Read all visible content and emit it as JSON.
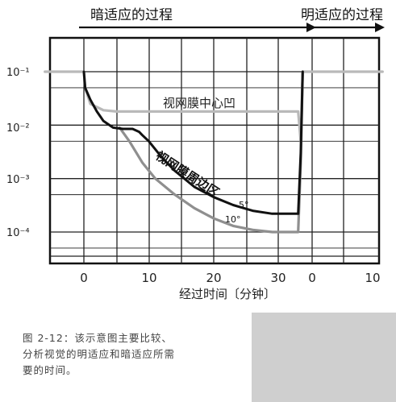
{
  "chart_data": {
    "type": "line",
    "top_labels": {
      "dark": "暗适应的过程",
      "light": "明适应的过程"
    },
    "xlabel": "经过时间〔分钟〕",
    "x_ticks_dark": [
      "0",
      "10",
      "20",
      "30"
    ],
    "x_ticks_light": [
      "0",
      "10"
    ],
    "y_ticks": [
      "10⁻¹",
      "10⁻²",
      "10⁻³",
      "10⁻⁴"
    ],
    "y_scale": "log",
    "ylim": [
      2e-05,
      0.2
    ],
    "grid": true,
    "annotations": {
      "fovea": "视网膜中心凹",
      "periphery": "视网膜周边区",
      "deg5": "5°",
      "deg10": "10°"
    },
    "series": [
      {
        "key": "fovea",
        "color": "#b9b9b9",
        "points": [
          [
            -6,
            0.1
          ],
          [
            0,
            0.1
          ],
          [
            0.2,
            0.05
          ],
          [
            1,
            0.025
          ],
          [
            3,
            0.019
          ],
          [
            5,
            0.018
          ],
          [
            10,
            0.018
          ],
          [
            20,
            0.018
          ],
          [
            32,
            0.018
          ],
          [
            33,
            0.018
          ],
          [
            33.4,
            0.005
          ],
          [
            33.7,
            0.1
          ],
          [
            36,
            0.1
          ],
          [
            46,
            0.1
          ]
        ]
      },
      {
        "key": "periphery_5deg",
        "color": "#111111",
        "points": [
          [
            0,
            0.1
          ],
          [
            0.2,
            0.05
          ],
          [
            1,
            0.03
          ],
          [
            2,
            0.018
          ],
          [
            3,
            0.012
          ],
          [
            4.5,
            0.009
          ],
          [
            6,
            0.0085
          ],
          [
            7.5,
            0.0085
          ],
          [
            8.5,
            0.0075
          ],
          [
            9,
            0.0065
          ],
          [
            10,
            0.005
          ],
          [
            12,
            0.0025
          ],
          [
            14,
            0.0014
          ],
          [
            17,
            0.0007
          ],
          [
            20,
            0.00045
          ],
          [
            23,
            0.00032
          ],
          [
            26,
            0.00025
          ],
          [
            29,
            0.00022
          ],
          [
            32,
            0.00022
          ],
          [
            33,
            0.00022
          ],
          [
            33.4,
            0.003
          ],
          [
            33.7,
            0.1
          ]
        ]
      },
      {
        "key": "periphery_10deg",
        "color": "#8f8f8f",
        "points": [
          [
            5.5,
            0.009
          ],
          [
            7,
            0.005
          ],
          [
            9,
            0.002
          ],
          [
            11,
            0.001
          ],
          [
            14,
            0.0005
          ],
          [
            17,
            0.00028
          ],
          [
            20,
            0.00018
          ],
          [
            23,
            0.00013
          ],
          [
            26,
            0.00011
          ],
          [
            29,
            0.0001
          ],
          [
            32,
            0.0001
          ],
          [
            33,
            0.0001
          ],
          [
            33.4,
            0.002
          ],
          [
            33.7,
            0.1
          ]
        ]
      }
    ]
  },
  "caption": {
    "lines": [
      "图 2-12：该示意图主要比较、",
      "分析视觉的明适应和暗适应所需",
      "要的时间。"
    ]
  }
}
